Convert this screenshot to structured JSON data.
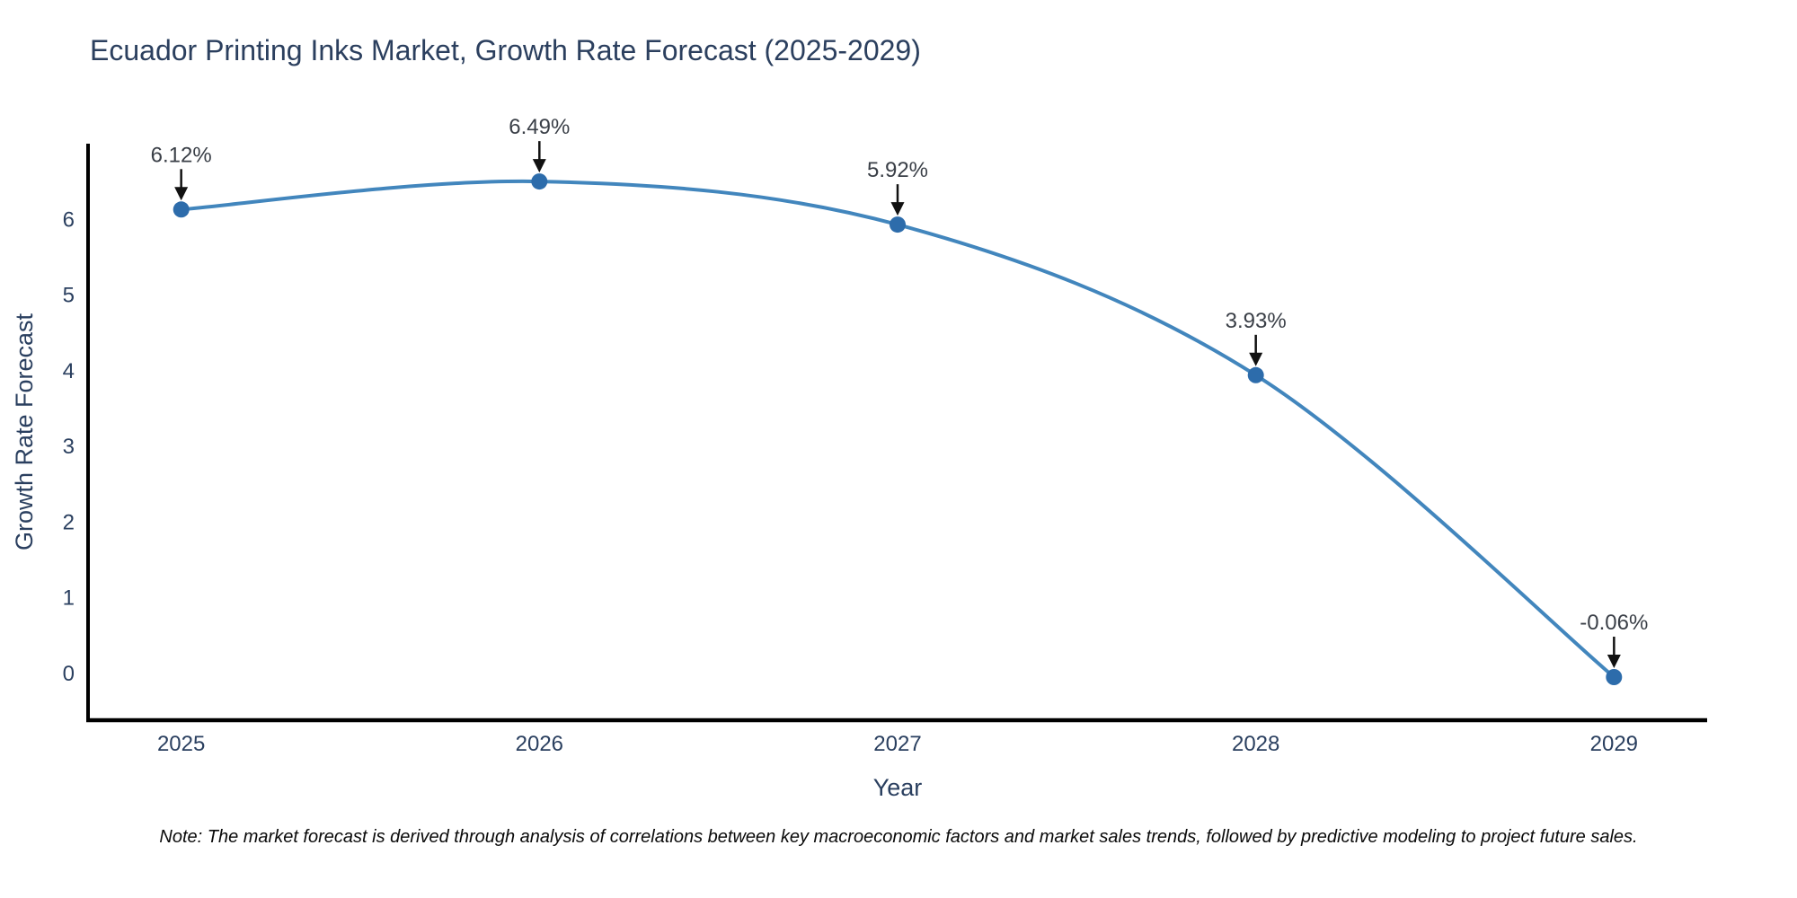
{
  "note": "Note: The market forecast is derived through analysis of correlations between key macroeconomic factors and market sales trends, followed by predictive modeling to project future sales.",
  "chart_data": {
    "type": "line",
    "title": "Ecuador Printing Inks Market, Growth Rate Forecast (2025-2029)",
    "x": [
      2025,
      2026,
      2027,
      2028,
      2029
    ],
    "values": [
      6.12,
      6.49,
      5.92,
      3.93,
      -0.06
    ],
    "point_labels": [
      "6.12%",
      "6.49%",
      "5.92%",
      "3.93%",
      "-0.06%"
    ],
    "xlabel": "Year",
    "ylabel": "Growth Rate Forecast",
    "yticks": [
      0,
      1,
      2,
      3,
      4,
      5,
      6
    ],
    "xlim": [
      2024.74,
      2029.26
    ],
    "ylim": [
      -0.63,
      6.99
    ],
    "grid": false,
    "legend": "none",
    "line_shape": "spline",
    "colors": {
      "line": "#4286bd",
      "marker": "#2d6cab",
      "axis": "#000000",
      "text": "#2a3f5f",
      "annotation": "#3a3f47",
      "arrow": "#111111",
      "background": "#ffffff"
    }
  }
}
